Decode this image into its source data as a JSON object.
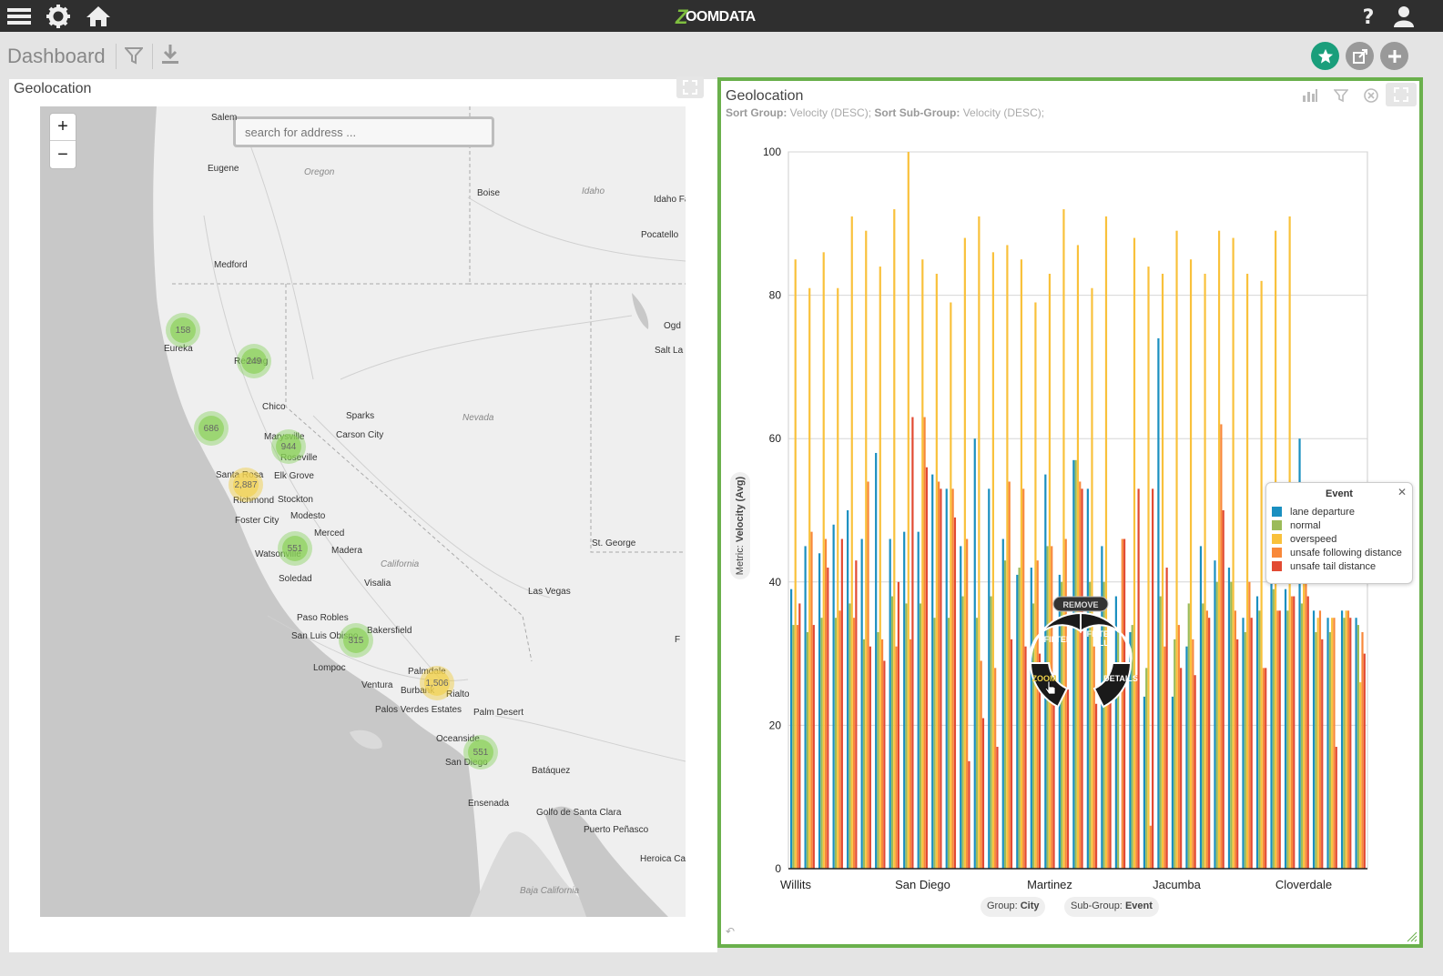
{
  "app": {
    "logo_text": "OOMDATA",
    "logo_mark": "Z"
  },
  "topbar": {
    "menu_icon": "menu-icon",
    "settings_icon": "gear-icon",
    "home_icon": "home-icon",
    "help_icon": "help-icon",
    "user_icon": "user-icon"
  },
  "dashboard": {
    "title": "Dashboard",
    "star_color": "#1a9e7b"
  },
  "left_panel": {
    "title": "Geolocation",
    "search_placeholder": "search for address ...",
    "zoom_in": "+",
    "zoom_out": "−",
    "clusters": [
      {
        "label": "158",
        "kind": "g"
      },
      {
        "label": "249",
        "kind": "g"
      },
      {
        "label": "686",
        "kind": "g"
      },
      {
        "label": "944",
        "kind": "g"
      },
      {
        "label": "2,887",
        "kind": "y"
      },
      {
        "label": "551",
        "kind": "g"
      },
      {
        "label": "315",
        "kind": "g"
      },
      {
        "label": "1,506",
        "kind": "y"
      },
      {
        "label": "551",
        "kind": "g"
      }
    ],
    "cities": [
      "Salem",
      "Eugene",
      "Medford",
      "Eureka",
      "Redding",
      "Chico",
      "Marysville",
      "Roseville",
      "Santa Rosa",
      "Elk Grove",
      "Richmond",
      "Stockton",
      "Foster City",
      "Modesto",
      "Merced",
      "Watsonville",
      "Madera",
      "Soledad",
      "Visalia",
      "Paso Robles",
      "San Luis Obispo",
      "Bakersfield",
      "Lompoc",
      "Palmdale",
      "Ventura",
      "Burbank",
      "Rialto",
      "Palos Verdes Estates",
      "Palm Desert",
      "Oceanside",
      "San Diego",
      "Batáquez",
      "Ensenada",
      "Golfo de Santa Clara",
      "Puerto Peñasco",
      "Heroica Ca",
      "Boise",
      "Idaho Fa",
      "Pocatello",
      "Ogd",
      "Salt La",
      "Sparks",
      "Carson City",
      "St. George",
      "Las Vegas",
      "F"
    ],
    "regions": [
      "Oregon",
      "Idaho",
      "Nevada",
      "California",
      "Baja California"
    ]
  },
  "right_panel": {
    "title": "Geolocation",
    "sort_group_label": "Sort Group:",
    "sort_group_value": "Velocity (DESC);",
    "sort_sub_label": "Sort Sub-Group:",
    "sort_sub_value": "Velocity (DESC);",
    "metric_prefix": "Metric:",
    "metric_value": "Velocity (Avg)",
    "group_label": "Group:",
    "group_value": "City",
    "subgroup_label": "Sub-Group:",
    "subgroup_value": "Event",
    "radial_menu": {
      "remove": "REMOVE",
      "filter": "FILTER",
      "filter_all_1": "FILTER",
      "filter_all_2": "ALL",
      "zoom": "ZOOM",
      "details": "DETAILS"
    }
  },
  "chart_data": {
    "type": "bar",
    "title": "Geolocation",
    "xlabel": "City",
    "ylabel": "Velocity (Avg)",
    "ylim": [
      0,
      100
    ],
    "yticks": [
      0,
      20,
      40,
      60,
      80,
      100
    ],
    "grid": true,
    "legend": {
      "title": "Event",
      "placement": "right"
    },
    "x_tick_labels": [
      "Willits",
      "San Diego",
      "Martinez",
      "Jacumba",
      "Cloverdale"
    ],
    "series": [
      {
        "name": "lane departure",
        "color": "#1a8fc0",
        "values": [
          39,
          45,
          44,
          48,
          50,
          46,
          58,
          46,
          47,
          47,
          55,
          53,
          45,
          60,
          53,
          46,
          41,
          42,
          55,
          41,
          57,
          53,
          45,
          38,
          33,
          24,
          74,
          24,
          31,
          45,
          43,
          42,
          35,
          38,
          47,
          39,
          60,
          36,
          35,
          36,
          35
        ]
      },
      {
        "name": "normal",
        "color": "#9bbb59",
        "values": [
          34,
          33,
          35,
          35,
          37,
          32,
          33,
          38,
          37,
          37,
          35,
          35,
          38,
          35,
          38,
          43,
          42,
          37,
          45,
          40,
          57,
          40,
          40,
          33,
          34,
          28,
          38,
          32,
          37,
          37,
          40,
          40,
          33,
          36,
          39,
          36,
          37,
          33,
          33,
          35,
          34
        ]
      },
      {
        "name": "overspeed",
        "color": "#f9c13b",
        "values": [
          85,
          81,
          86,
          81,
          91,
          89,
          84,
          92,
          100,
          85,
          83,
          79,
          88,
          91,
          86,
          87,
          85,
          79,
          83,
          92,
          87,
          81,
          91,
          0,
          88,
          84,
          83,
          89,
          85,
          83,
          89,
          88,
          83,
          82,
          89,
          91,
          40,
          35,
          35,
          36,
          26
        ]
      },
      {
        "name": "unsafe following distance",
        "color": "#f8883a",
        "values": [
          34,
          47,
          46,
          36,
          35,
          54,
          32,
          31,
          32,
          63,
          54,
          53,
          46,
          29,
          28,
          54,
          53,
          43,
          45,
          46,
          54,
          31,
          26,
          46,
          27,
          6,
          31,
          34,
          32,
          36,
          62,
          36,
          40,
          28,
          36,
          38,
          42,
          36,
          35,
          36,
          33
        ]
      },
      {
        "name": "unsafe tail distance",
        "color": "#e24a33",
        "values": [
          37,
          34,
          42,
          46,
          43,
          31,
          29,
          40,
          63,
          56,
          53,
          49,
          15,
          21,
          17,
          32,
          31,
          30,
          27,
          25,
          53,
          23,
          24,
          46,
          53,
          53,
          42,
          28,
          27,
          35,
          50,
          32,
          35,
          28,
          36,
          38,
          38,
          32,
          17,
          35,
          30
        ]
      }
    ]
  }
}
